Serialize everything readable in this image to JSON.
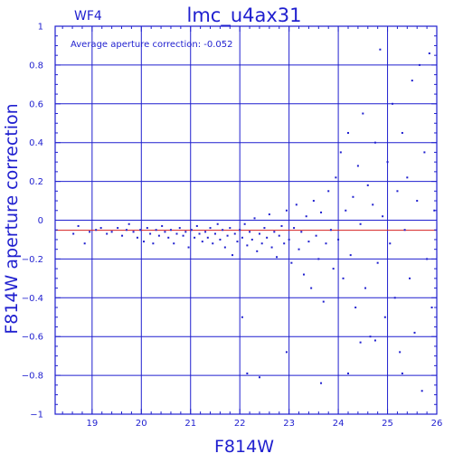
{
  "chart_data": {
    "type": "scatter",
    "chip_label": "WF4",
    "title": "lmc_u4ax31",
    "annotation": "Average aperture correction: -0.052",
    "xlabel": "F814W",
    "ylabel": "F814W aperture correction",
    "xlim": [
      18.25,
      26.0
    ],
    "ylim": [
      -1.0,
      1.0
    ],
    "xticks": [
      19,
      20,
      21,
      22,
      23,
      24,
      25,
      26
    ],
    "yticks": [
      -1,
      -0.8,
      -0.6,
      -0.4,
      -0.2,
      0,
      0.2,
      0.4,
      0.6,
      0.8,
      1
    ],
    "ytick_labels": [
      "−1",
      "−0.8",
      "−0.6",
      "−0.4",
      "−0.2",
      "0",
      "0.2",
      "0.4",
      "0.6",
      "0.8",
      "1"
    ],
    "grid": true,
    "reference_lines": [
      {
        "y": 0.0,
        "color": "#1f1fcf"
      },
      {
        "y": -0.052,
        "color": "#d42020"
      }
    ],
    "colors": {
      "axes": "#1f1fcf",
      "points": "#1f1fcf",
      "mean_line": "#d42020",
      "background": "#ffffff"
    },
    "points": [
      [
        18.62,
        -0.07
      ],
      [
        18.72,
        -0.03
      ],
      [
        18.85,
        -0.12
      ],
      [
        18.95,
        -0.06
      ],
      [
        19.08,
        -0.05
      ],
      [
        19.18,
        -0.04
      ],
      [
        19.3,
        -0.07
      ],
      [
        19.4,
        -0.06
      ],
      [
        19.52,
        -0.04
      ],
      [
        19.61,
        -0.08
      ],
      [
        19.7,
        -0.05
      ],
      [
        19.75,
        -0.02
      ],
      [
        19.84,
        -0.06
      ],
      [
        19.92,
        -0.09
      ],
      [
        19.98,
        -0.05
      ],
      [
        20.05,
        -0.11
      ],
      [
        20.12,
        -0.04
      ],
      [
        20.18,
        -0.07
      ],
      [
        20.24,
        -0.12
      ],
      [
        20.3,
        -0.05
      ],
      [
        20.36,
        -0.08
      ],
      [
        20.42,
        -0.03
      ],
      [
        20.48,
        -0.06
      ],
      [
        20.55,
        -0.09
      ],
      [
        20.6,
        -0.05
      ],
      [
        20.66,
        -0.12
      ],
      [
        20.72,
        -0.07
      ],
      [
        20.78,
        -0.04
      ],
      [
        20.85,
        -0.08
      ],
      [
        20.9,
        -0.06
      ],
      [
        20.96,
        -0.14
      ],
      [
        21.02,
        -0.05
      ],
      [
        21.08,
        -0.09
      ],
      [
        21.13,
        -0.03
      ],
      [
        21.18,
        -0.07
      ],
      [
        21.24,
        -0.11
      ],
      [
        21.3,
        -0.06
      ],
      [
        21.35,
        -0.09
      ],
      [
        21.4,
        -0.04
      ],
      [
        21.45,
        -0.12
      ],
      [
        21.5,
        -0.07
      ],
      [
        21.55,
        -0.02
      ],
      [
        21.6,
        -0.1
      ],
      [
        21.65,
        -0.05
      ],
      [
        21.7,
        -0.14
      ],
      [
        21.75,
        -0.08
      ],
      [
        21.8,
        -0.04
      ],
      [
        21.85,
        -0.18
      ],
      [
        21.9,
        -0.07
      ],
      [
        21.95,
        -0.11
      ],
      [
        22.0,
        -0.05
      ],
      [
        22.05,
        -0.09
      ],
      [
        22.1,
        -0.02
      ],
      [
        22.15,
        -0.13
      ],
      [
        22.2,
        -0.06
      ],
      [
        22.25,
        -0.1
      ],
      [
        22.3,
        0.01
      ],
      [
        22.35,
        -0.16
      ],
      [
        22.4,
        -0.07
      ],
      [
        22.45,
        -0.12
      ],
      [
        22.5,
        -0.04
      ],
      [
        22.55,
        -0.09
      ],
      [
        22.6,
        0.03
      ],
      [
        22.65,
        -0.14
      ],
      [
        22.7,
        -0.06
      ],
      [
        22.75,
        -0.19
      ],
      [
        22.8,
        -0.08
      ],
      [
        22.85,
        -0.03
      ],
      [
        22.9,
        -0.12
      ],
      [
        22.95,
        0.05
      ],
      [
        23.0,
        -0.1
      ],
      [
        23.05,
        -0.22
      ],
      [
        23.1,
        -0.04
      ],
      [
        23.15,
        0.08
      ],
      [
        23.2,
        -0.15
      ],
      [
        23.25,
        -0.06
      ],
      [
        23.3,
        -0.28
      ],
      [
        23.35,
        0.02
      ],
      [
        23.4,
        -0.11
      ],
      [
        23.45,
        -0.35
      ],
      [
        23.5,
        0.1
      ],
      [
        23.55,
        -0.08
      ],
      [
        23.6,
        -0.2
      ],
      [
        23.65,
        0.04
      ],
      [
        23.7,
        -0.42
      ],
      [
        23.75,
        -0.12
      ],
      [
        23.8,
        0.15
      ],
      [
        23.85,
        -0.05
      ],
      [
        23.9,
        -0.25
      ],
      [
        23.95,
        0.22
      ],
      [
        24.0,
        -0.1
      ],
      [
        24.05,
        0.35
      ],
      [
        24.1,
        -0.3
      ],
      [
        24.15,
        0.05
      ],
      [
        24.2,
        0.45
      ],
      [
        24.25,
        -0.18
      ],
      [
        24.3,
        0.12
      ],
      [
        24.35,
        -0.45
      ],
      [
        24.4,
        0.28
      ],
      [
        24.45,
        -0.02
      ],
      [
        24.5,
        0.55
      ],
      [
        24.55,
        -0.35
      ],
      [
        24.6,
        0.18
      ],
      [
        24.65,
        -0.6
      ],
      [
        24.7,
        0.08
      ],
      [
        24.75,
        0.4
      ],
      [
        24.8,
        -0.22
      ],
      [
        24.85,
        0.88
      ],
      [
        24.9,
        0.02
      ],
      [
        24.95,
        -0.5
      ],
      [
        25.0,
        0.3
      ],
      [
        25.05,
        -0.12
      ],
      [
        25.1,
        0.6
      ],
      [
        25.15,
        -0.4
      ],
      [
        25.2,
        0.15
      ],
      [
        25.25,
        -0.68
      ],
      [
        25.3,
        0.45
      ],
      [
        25.35,
        -0.05
      ],
      [
        25.4,
        0.22
      ],
      [
        25.45,
        -0.3
      ],
      [
        25.5,
        0.72
      ],
      [
        25.55,
        -0.58
      ],
      [
        25.6,
        0.1
      ],
      [
        25.65,
        0.8
      ],
      [
        25.7,
        -0.88
      ],
      [
        25.75,
        0.35
      ],
      [
        25.8,
        -0.2
      ],
      [
        25.85,
        0.86
      ],
      [
        25.9,
        -0.45
      ],
      [
        25.95,
        0.05
      ],
      [
        22.05,
        -0.5
      ],
      [
        22.15,
        -0.79
      ],
      [
        22.4,
        -0.81
      ],
      [
        22.95,
        -0.68
      ],
      [
        23.65,
        -0.84
      ],
      [
        24.2,
        -0.79
      ],
      [
        24.45,
        -0.63
      ],
      [
        24.75,
        -0.62
      ],
      [
        25.3,
        -0.79
      ]
    ]
  }
}
